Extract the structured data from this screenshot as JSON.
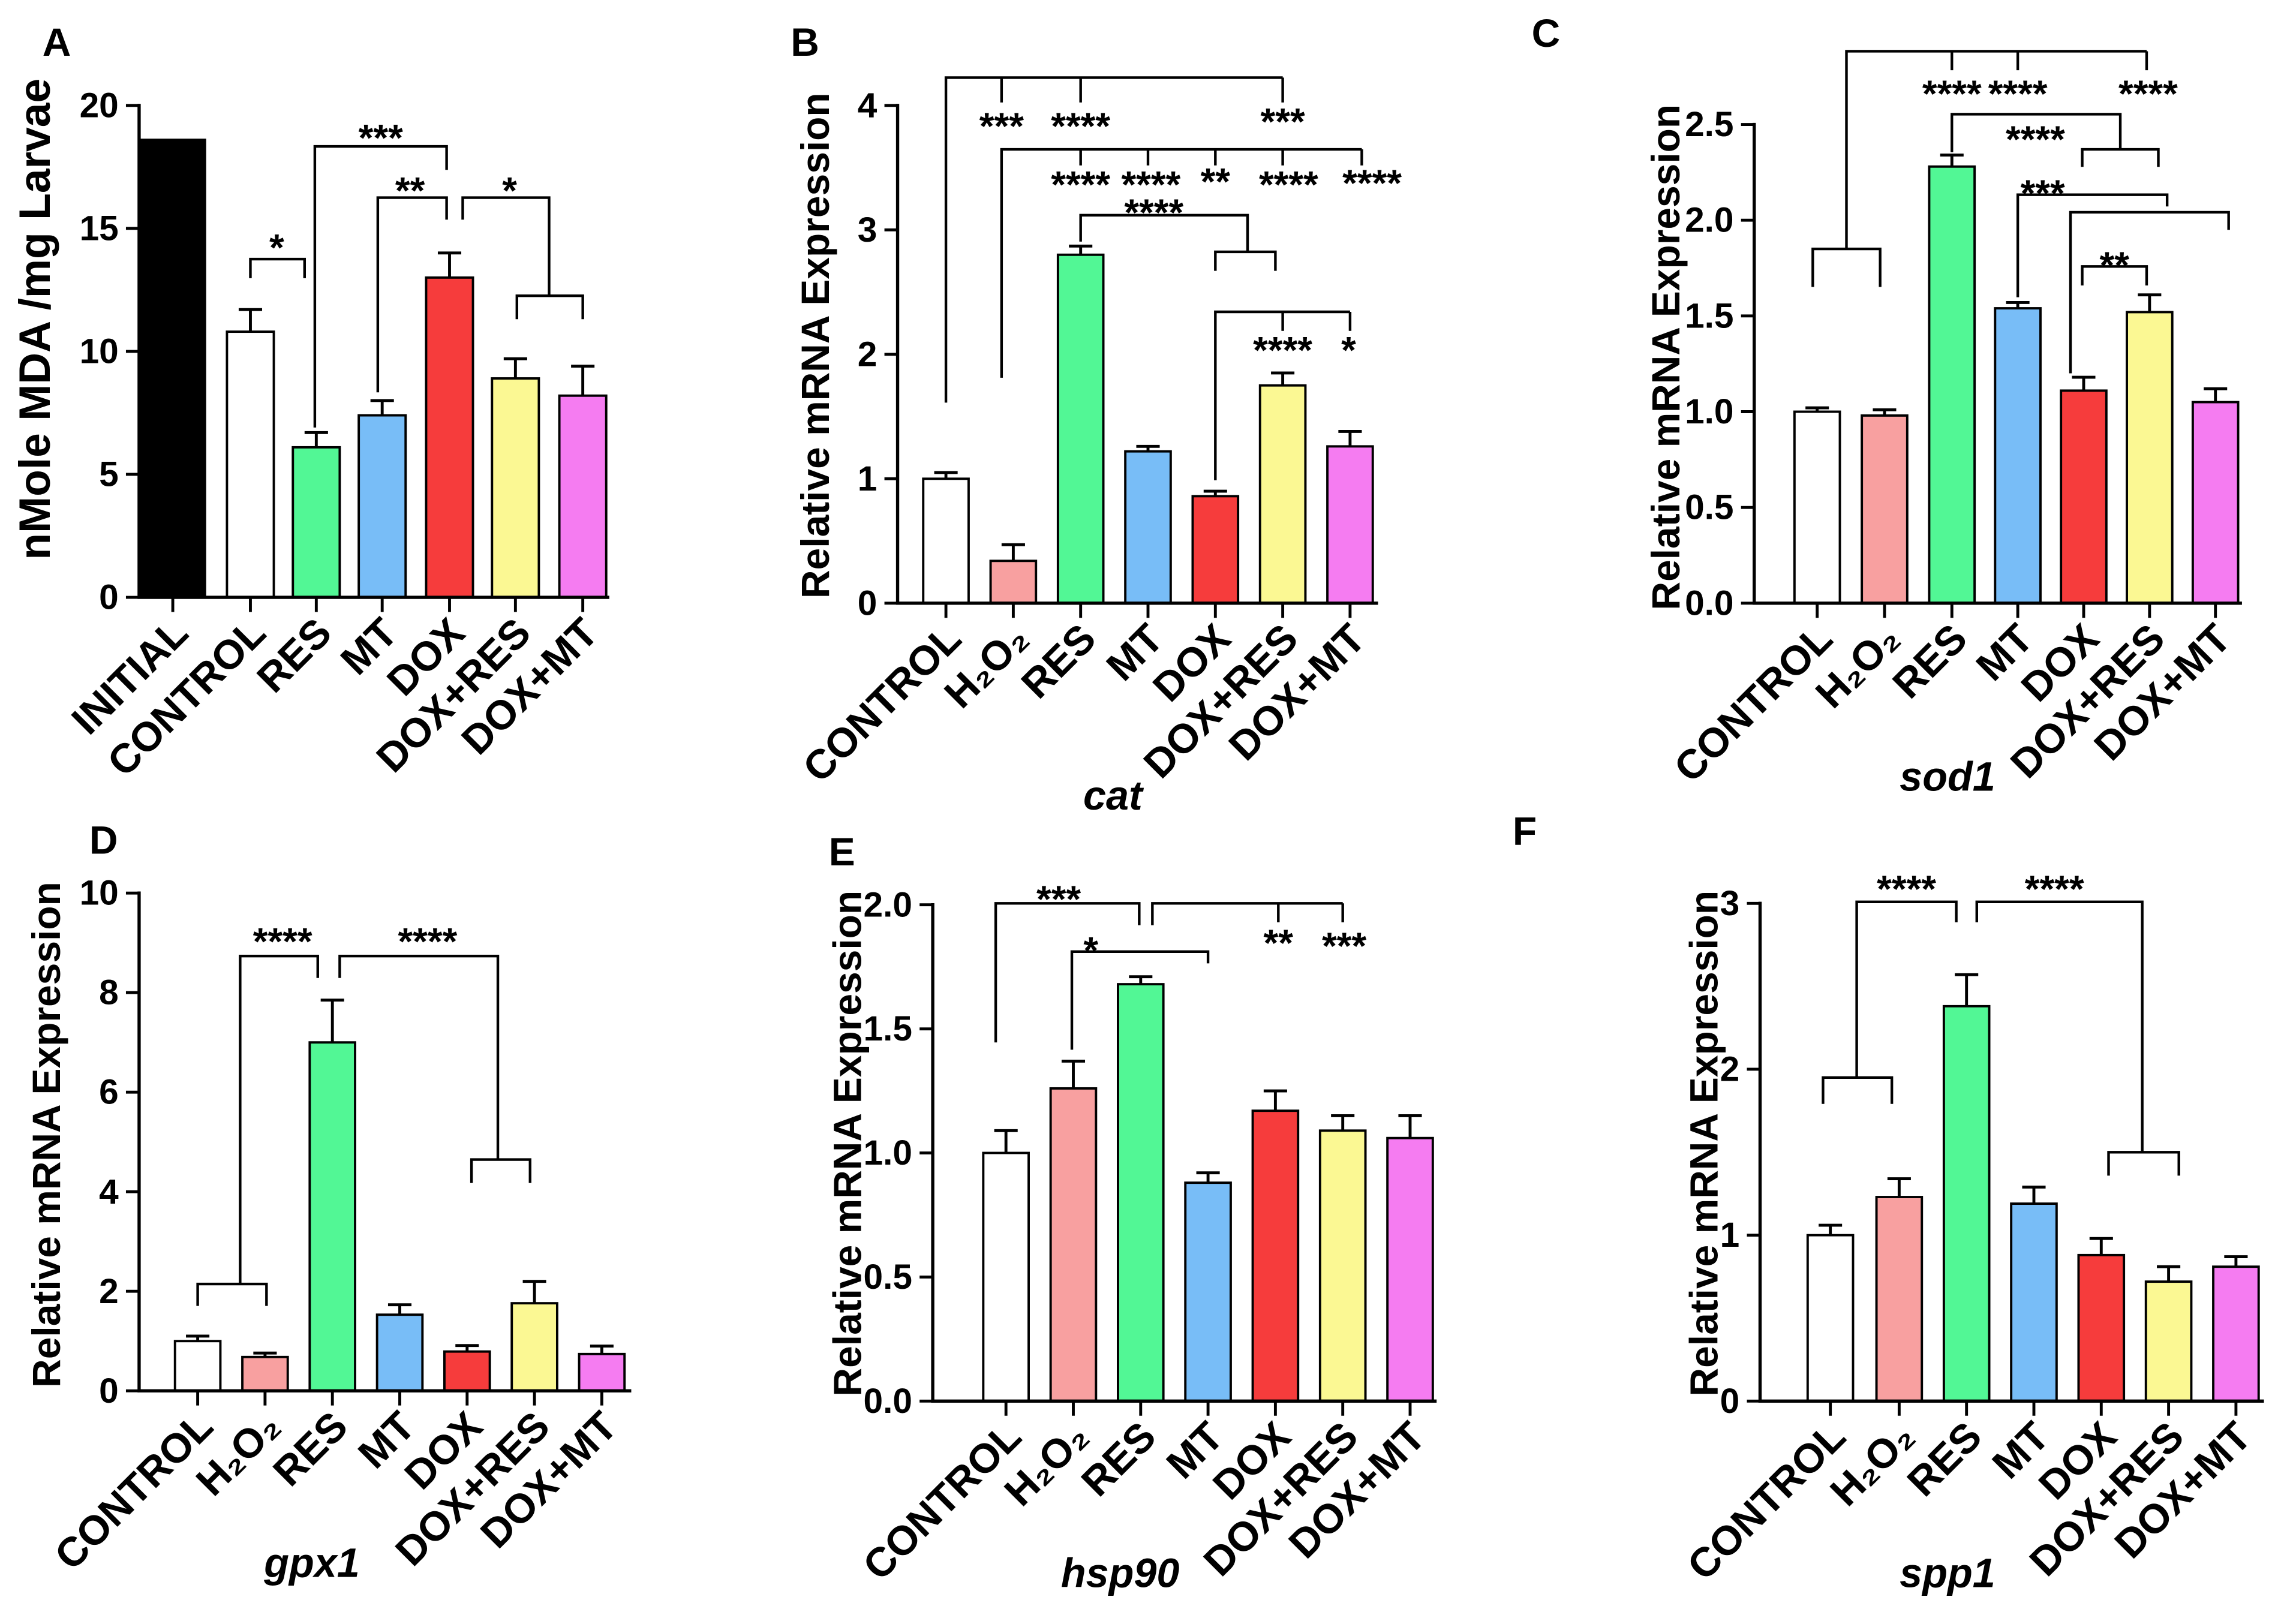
{
  "chart_data": [
    {
      "panel": "A",
      "type": "bar",
      "ylabel": "nMole MDA /mg Larvae",
      "ylim": [
        0,
        20
      ],
      "yticks": [
        "0",
        "5",
        "10",
        "15",
        "20"
      ],
      "categories": [
        "INITIAL",
        "CONTROL",
        "RES",
        "MT",
        "DOX",
        "DOX+RES",
        "DOX+MT"
      ],
      "values": [
        18.6,
        10.8,
        6.1,
        7.4,
        13.0,
        8.9,
        8.2
      ],
      "errors": [
        0,
        0.9,
        0.6,
        0.6,
        1.0,
        0.8,
        1.2
      ],
      "colors": [
        "#000000",
        "#ffffff",
        "#52f795",
        "#78bdf7",
        "#f63c3c",
        "#fbf893",
        "#f57cf1"
      ],
      "annotations": [
        "*",
        "***",
        "**",
        "*"
      ]
    },
    {
      "panel": "B",
      "type": "bar",
      "ylabel": "Relative mRNA Expression",
      "xlabel": "cat",
      "ylim": [
        0,
        4
      ],
      "yticks": [
        "0",
        "1",
        "2",
        "3",
        "4"
      ],
      "categories": [
        "CONTROL",
        "H₂O₂",
        "RES",
        "MT",
        "DOX",
        "DOX+RES",
        "DOX+MT"
      ],
      "values": [
        1.0,
        0.34,
        2.8,
        1.22,
        0.86,
        1.75,
        1.26
      ],
      "errors": [
        0.05,
        0.13,
        0.07,
        0.04,
        0.04,
        0.1,
        0.12
      ],
      "colors": [
        "#ffffff",
        "#f8a0a0",
        "#52f795",
        "#78bdf7",
        "#f63c3c",
        "#fbf893",
        "#f57cf1"
      ],
      "annotations": [
        "***",
        "****",
        "***",
        "****",
        "****",
        "**",
        "****",
        "****",
        "****",
        "****",
        "*"
      ]
    },
    {
      "panel": "C",
      "type": "bar",
      "ylabel": "Relative mRNA Expression",
      "xlabel": "sod1",
      "ylim": [
        0,
        2.5
      ],
      "yticks": [
        "0.0",
        "0.5",
        "1.0",
        "1.5",
        "2.0",
        "2.5"
      ],
      "categories": [
        "CONTROL",
        "H₂O₂",
        "RES",
        "MT",
        "DOX",
        "DOX+RES",
        "DOX+MT"
      ],
      "values": [
        1.0,
        0.98,
        2.28,
        1.54,
        1.11,
        1.52,
        1.05
      ],
      "errors": [
        0.02,
        0.03,
        0.06,
        0.03,
        0.07,
        0.09,
        0.07
      ],
      "colors": [
        "#ffffff",
        "#f8a0a0",
        "#52f795",
        "#78bdf7",
        "#f63c3c",
        "#fbf893",
        "#f57cf1"
      ],
      "annotations": [
        "****",
        "****",
        "****",
        "****",
        "***",
        "**"
      ]
    },
    {
      "panel": "D",
      "type": "bar",
      "ylabel": "Relative mRNA Expression",
      "xlabel": "gpx1",
      "ylim": [
        0,
        10
      ],
      "yticks": [
        "0",
        "2",
        "4",
        "6",
        "8",
        "10"
      ],
      "categories": [
        "CONTROL",
        "H₂O₂",
        "RES",
        "MT",
        "DOX",
        "DOX+RES",
        "DOX+MT"
      ],
      "values": [
        1.0,
        0.68,
        7.0,
        1.53,
        0.79,
        1.76,
        0.74
      ],
      "errors": [
        0.1,
        0.08,
        0.85,
        0.2,
        0.12,
        0.44,
        0.16
      ],
      "colors": [
        "#ffffff",
        "#f8a0a0",
        "#52f795",
        "#78bdf7",
        "#f63c3c",
        "#fbf893",
        "#f57cf1"
      ],
      "annotations": [
        "****",
        "****"
      ]
    },
    {
      "panel": "E",
      "type": "bar",
      "ylabel": "Relative mRNA Expression",
      "xlabel": "hsp90",
      "ylim": [
        0,
        2
      ],
      "yticks": [
        "0.0",
        "0.5",
        "1.0",
        "1.5",
        "2.0"
      ],
      "categories": [
        "CONTROL",
        "H₂O₂",
        "RES",
        "MT",
        "DOX",
        "DOX+RES",
        "DOX+MT"
      ],
      "values": [
        1.0,
        1.26,
        1.68,
        0.88,
        1.17,
        1.09,
        1.06
      ],
      "errors": [
        0.09,
        0.11,
        0.03,
        0.04,
        0.08,
        0.06,
        0.09
      ],
      "colors": [
        "#ffffff",
        "#f8a0a0",
        "#52f795",
        "#78bdf7",
        "#f63c3c",
        "#fbf893",
        "#f57cf1"
      ],
      "annotations": [
        "***",
        "*",
        "**",
        "***"
      ]
    },
    {
      "panel": "F",
      "type": "bar",
      "ylabel": "Relative mRNA Expression",
      "xlabel": "spp1",
      "ylim": [
        0,
        3
      ],
      "yticks": [
        "0",
        "1",
        "2",
        "3"
      ],
      "categories": [
        "CONTROL",
        "H₂O₂",
        "RES",
        "MT",
        "DOX",
        "DOX+RES",
        "DOX+MT"
      ],
      "values": [
        1.0,
        1.23,
        2.38,
        1.19,
        0.88,
        0.72,
        0.81
      ],
      "errors": [
        0.06,
        0.11,
        0.19,
        0.1,
        0.1,
        0.09,
        0.06
      ],
      "colors": [
        "#ffffff",
        "#f8a0a0",
        "#52f795",
        "#78bdf7",
        "#f63c3c",
        "#fbf893",
        "#f57cf1"
      ],
      "annotations": [
        "****",
        "****"
      ]
    }
  ]
}
